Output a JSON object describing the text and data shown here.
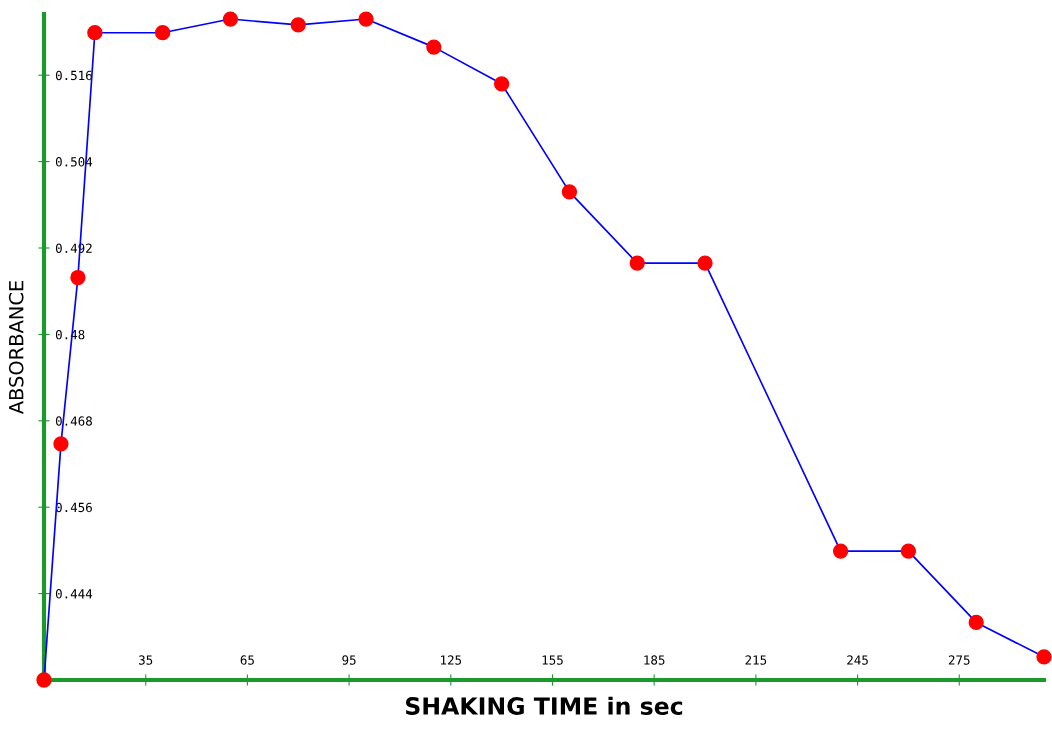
{
  "chart_data": {
    "type": "line",
    "xlabel": "SHAKING TIME in sec",
    "ylabel": "ABSORBANCE",
    "x": [
      5,
      10,
      15,
      20,
      40,
      60,
      80,
      100,
      120,
      140,
      160,
      180,
      200,
      240,
      260,
      280,
      300
    ],
    "series": [
      {
        "color": "#0000ff",
        "colors": [
          "#ff0000",
          "#ff0000",
          "#ff0000",
          "#ff0000",
          "#ff0000",
          "#ff0000",
          "#ff0000",
          "#ff0000",
          "#ff0000",
          "#ff0000",
          "#ff0000",
          "#ff0000",
          "#ff0000",
          "#ff0000",
          "#ff0000",
          "#ff0000",
          "#ff0000"
        ],
        "values": [
          0.432,
          0.4648,
          0.4879,
          0.5219,
          0.5219,
          0.5238,
          0.523,
          0.5238,
          0.5199,
          0.5148,
          0.4998,
          0.4899,
          0.4899,
          0.4499,
          0.4499,
          0.44,
          0.4352
        ]
      }
    ],
    "xlim": [
      5,
      300
    ],
    "ylim": [
      0.432,
      0.5245
    ],
    "xticks": [
      35,
      65,
      95,
      125,
      155,
      185,
      215,
      245,
      275
    ],
    "yticks": [
      {
        "value": 0.444,
        "label": "0.444"
      },
      {
        "value": 0.456,
        "label": "0.456"
      },
      {
        "value": 0.468,
        "label": "0.468"
      },
      {
        "value": 0.48,
        "label": "0.48"
      },
      {
        "value": 0.492,
        "label": "0.492"
      },
      {
        "value": 0.504,
        "label": "0.504"
      },
      {
        "value": 0.516,
        "label": "0.516"
      }
    ],
    "grid": false,
    "legend": false,
    "marker": "circle",
    "line_style": "solid"
  }
}
